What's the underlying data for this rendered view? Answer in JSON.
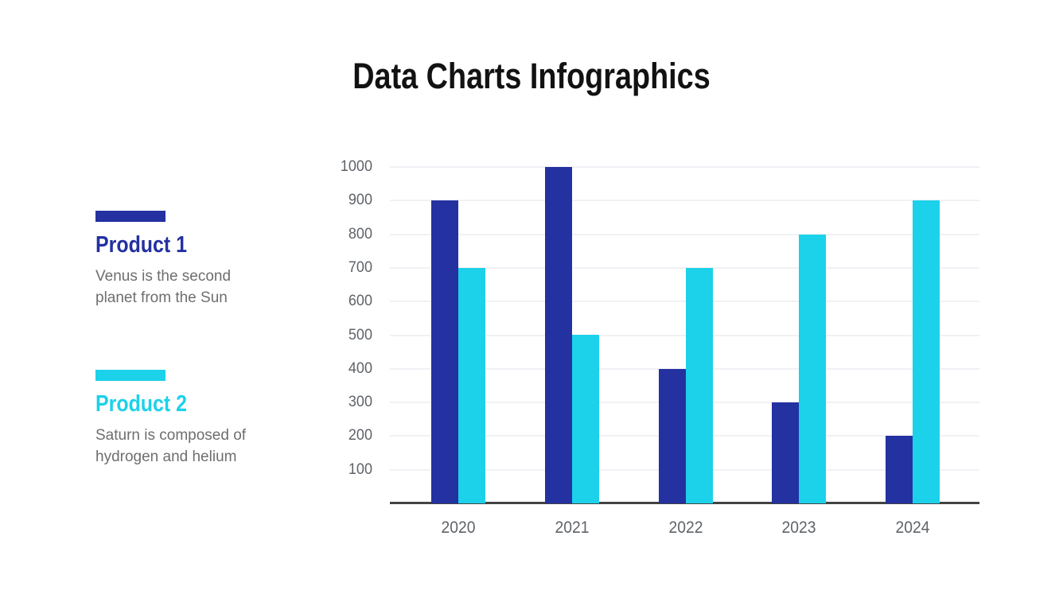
{
  "title": "Data Charts Infographics",
  "legend": {
    "items": [
      {
        "label": "Product 1",
        "description": "Venus is the second\nplanet from the Sun",
        "color": "#2431A0"
      },
      {
        "label": "Product 2",
        "description": "Saturn is composed of\nhydrogen and helium",
        "color": "#1CD1EA"
      }
    ]
  },
  "chart_data": {
    "type": "bar",
    "title": "Data Charts Infographics",
    "categories": [
      "2020",
      "2021",
      "2022",
      "2023",
      "2024"
    ],
    "series": [
      {
        "name": "Product 1",
        "color": "#2431A0",
        "values": [
          900,
          1000,
          400,
          300,
          200
        ]
      },
      {
        "name": "Product 2",
        "color": "#1CD1EA",
        "values": [
          700,
          500,
          700,
          800,
          900
        ]
      }
    ],
    "xlabel": "",
    "ylabel": "",
    "ylim": [
      0,
      1000
    ],
    "yticks": [
      100,
      200,
      300,
      400,
      500,
      600,
      700,
      800,
      900,
      1000
    ],
    "grid": true,
    "legend_position": "left"
  }
}
